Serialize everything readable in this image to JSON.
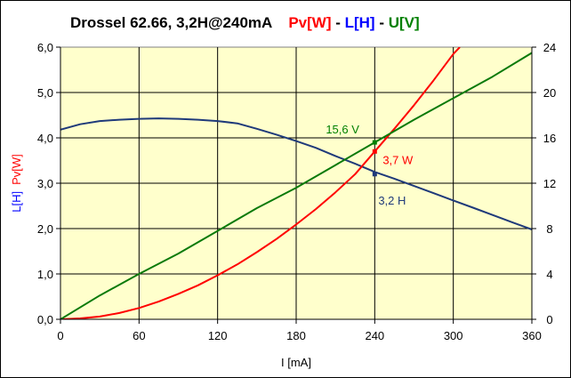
{
  "chart_data": {
    "type": "line",
    "title": "Drossel 62.66, 3,2H@240mA",
    "title_parts": [
      {
        "text": "Drossel 62.66, 3,2H@240mA",
        "color": "#000000"
      },
      {
        "text": "Pv[W]",
        "color": "#ff0000"
      },
      {
        "text": " - ",
        "color": "#000000"
      },
      {
        "text": "L[H]",
        "color": "#0000ff"
      },
      {
        "text": " - ",
        "color": "#000000"
      },
      {
        "text": "U[V]",
        "color": "#008000"
      }
    ],
    "xlabel": "I [mA]",
    "ylabel_parts": [
      {
        "text": "L[H]",
        "color": "#0000ff"
      },
      {
        "text": "Pv[W]",
        "color": "#ff0000"
      }
    ],
    "xlim": [
      0,
      360
    ],
    "ylim_left": [
      0,
      6
    ],
    "ylim_right": [
      0,
      24
    ],
    "x_ticks": [
      "0",
      "60",
      "120",
      "180",
      "240",
      "300",
      "360"
    ],
    "y_left_ticks": [
      "0,0",
      "1,0",
      "2,0",
      "3,0",
      "4,0",
      "5,0",
      "6,0"
    ],
    "y_right_ticks": [
      "0",
      "4",
      "8",
      "12",
      "16",
      "20",
      "24"
    ],
    "grid": true,
    "plot_background": "#ffffcc",
    "series": [
      {
        "name": "L[H]",
        "axis": "left",
        "color": "#1f3a7a",
        "x": [
          0,
          15,
          30,
          45,
          60,
          75,
          90,
          105,
          120,
          135,
          150,
          165,
          180,
          195,
          210,
          225,
          240,
          255,
          270,
          285,
          300,
          315,
          330,
          345,
          360
        ],
        "y": [
          4.18,
          4.3,
          4.37,
          4.4,
          4.42,
          4.43,
          4.42,
          4.4,
          4.37,
          4.32,
          4.2,
          4.07,
          3.93,
          3.78,
          3.6,
          3.43,
          3.25,
          3.1,
          2.94,
          2.78,
          2.62,
          2.46,
          2.3,
          2.14,
          1.98
        ]
      },
      {
        "name": "Pv[W]",
        "axis": "left",
        "color": "#ff0000",
        "x": [
          0,
          15,
          30,
          45,
          60,
          75,
          90,
          105,
          120,
          135,
          150,
          165,
          180,
          195,
          210,
          225,
          240,
          255,
          270,
          285,
          300,
          305
        ],
        "y": [
          0.0,
          0.02,
          0.06,
          0.14,
          0.25,
          0.39,
          0.56,
          0.75,
          0.97,
          1.21,
          1.48,
          1.77,
          2.09,
          2.43,
          2.8,
          3.2,
          3.7,
          4.2,
          4.72,
          5.27,
          5.85,
          6.0
        ]
      },
      {
        "name": "U[V]",
        "axis": "right",
        "color": "#0a7a0a",
        "x": [
          0,
          30,
          60,
          90,
          120,
          150,
          180,
          210,
          240,
          270,
          300,
          330,
          360
        ],
        "y": [
          0.0,
          2.1,
          4.0,
          5.8,
          7.8,
          9.8,
          11.6,
          13.6,
          15.6,
          17.6,
          19.5,
          21.4,
          23.5
        ]
      }
    ],
    "annotations": [
      {
        "text": "15,6 V",
        "color": "#008000",
        "x": 240,
        "value": 15.6,
        "axis": "right"
      },
      {
        "text": "3,7 W",
        "color": "#ff0000",
        "x": 240,
        "value": 3.7,
        "axis": "left"
      },
      {
        "text": "3,2 H",
        "color": "#1f3a7a",
        "x": 240,
        "value": 3.2,
        "axis": "left"
      }
    ]
  }
}
